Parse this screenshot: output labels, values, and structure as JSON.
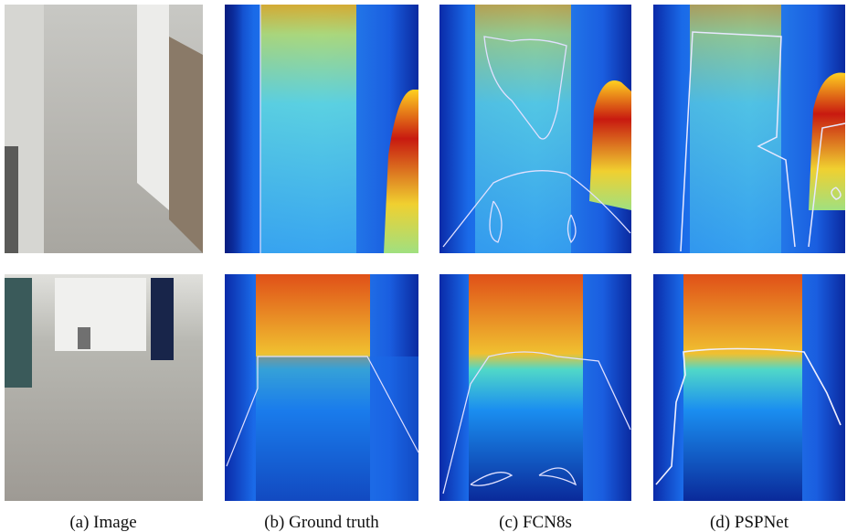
{
  "figure": {
    "panels": [
      {
        "caption": "(a) Image"
      },
      {
        "caption": "(b) Ground truth"
      },
      {
        "caption": "(c) FCN8s"
      },
      {
        "caption": "(d) PSPNet"
      }
    ]
  }
}
